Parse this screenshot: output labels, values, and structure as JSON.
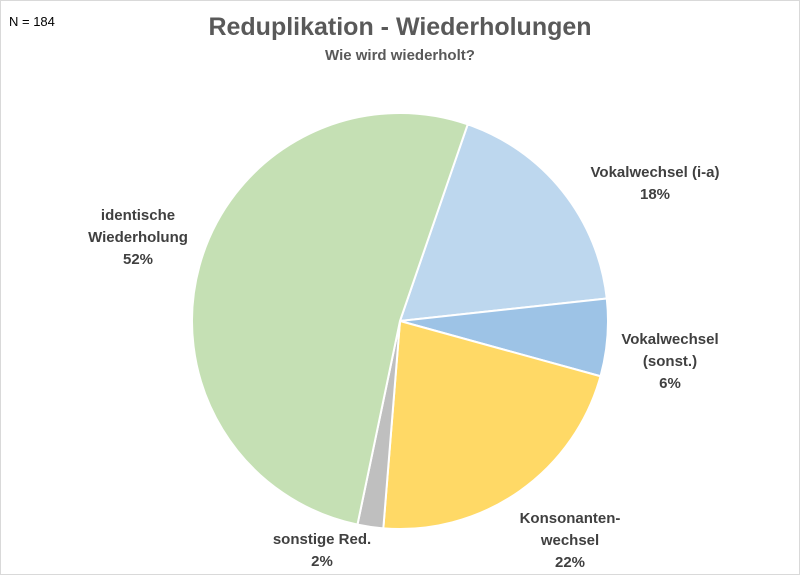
{
  "note": "N = 184",
  "chart_data": {
    "type": "pie",
    "title": "Reduplikation - Wiederholungen",
    "subtitle": "Wie wird wiederholt?",
    "slices": [
      {
        "label_lines": [
          "Vokalwechsel (i-a)"
        ],
        "percent_label": "18%",
        "value": 18,
        "color": "#bdd7ee"
      },
      {
        "label_lines": [
          "Vokalwechsel",
          "(sonst.)"
        ],
        "percent_label": "6%",
        "value": 6,
        "color": "#9dc3e6"
      },
      {
        "label_lines": [
          "Konsonanten-",
          "wechsel"
        ],
        "percent_label": "22%",
        "value": 22,
        "color": "#ffd966"
      },
      {
        "label_lines": [
          "sonstige Red."
        ],
        "percent_label": "2%",
        "value": 2,
        "color": "#bfbfbf"
      },
      {
        "label_lines": [
          "identische",
          "Wiederholung"
        ],
        "percent_label": "52%",
        "value": 52,
        "color": "#c5e0b4"
      }
    ]
  }
}
